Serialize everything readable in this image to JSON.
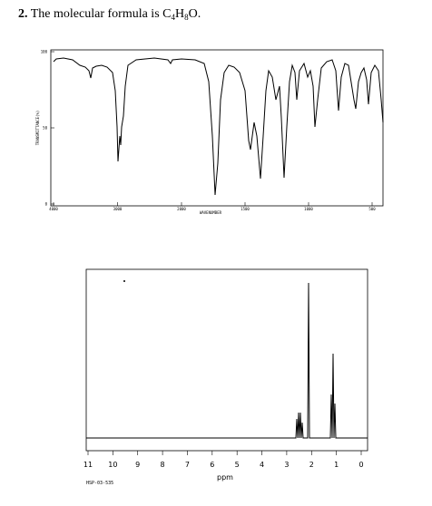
{
  "header": {
    "number": "2.",
    "text": "The molecular formula is C",
    "sub1": "4",
    "h": "H",
    "sub2": "8",
    "end": "O."
  },
  "ir": {
    "y_label": "TRANSMITTANCE(%)",
    "x_label": "WAVENUMBER",
    "yticks": [
      100,
      50,
      0
    ],
    "xticks": [
      4000,
      3000,
      2000,
      1500,
      1000,
      500
    ]
  },
  "nmr": {
    "xticks": [
      11,
      10,
      9,
      8,
      7,
      6,
      5,
      4,
      3,
      2,
      1,
      0
    ],
    "x_label": "ppm",
    "code": "HSP-03-535"
  }
}
